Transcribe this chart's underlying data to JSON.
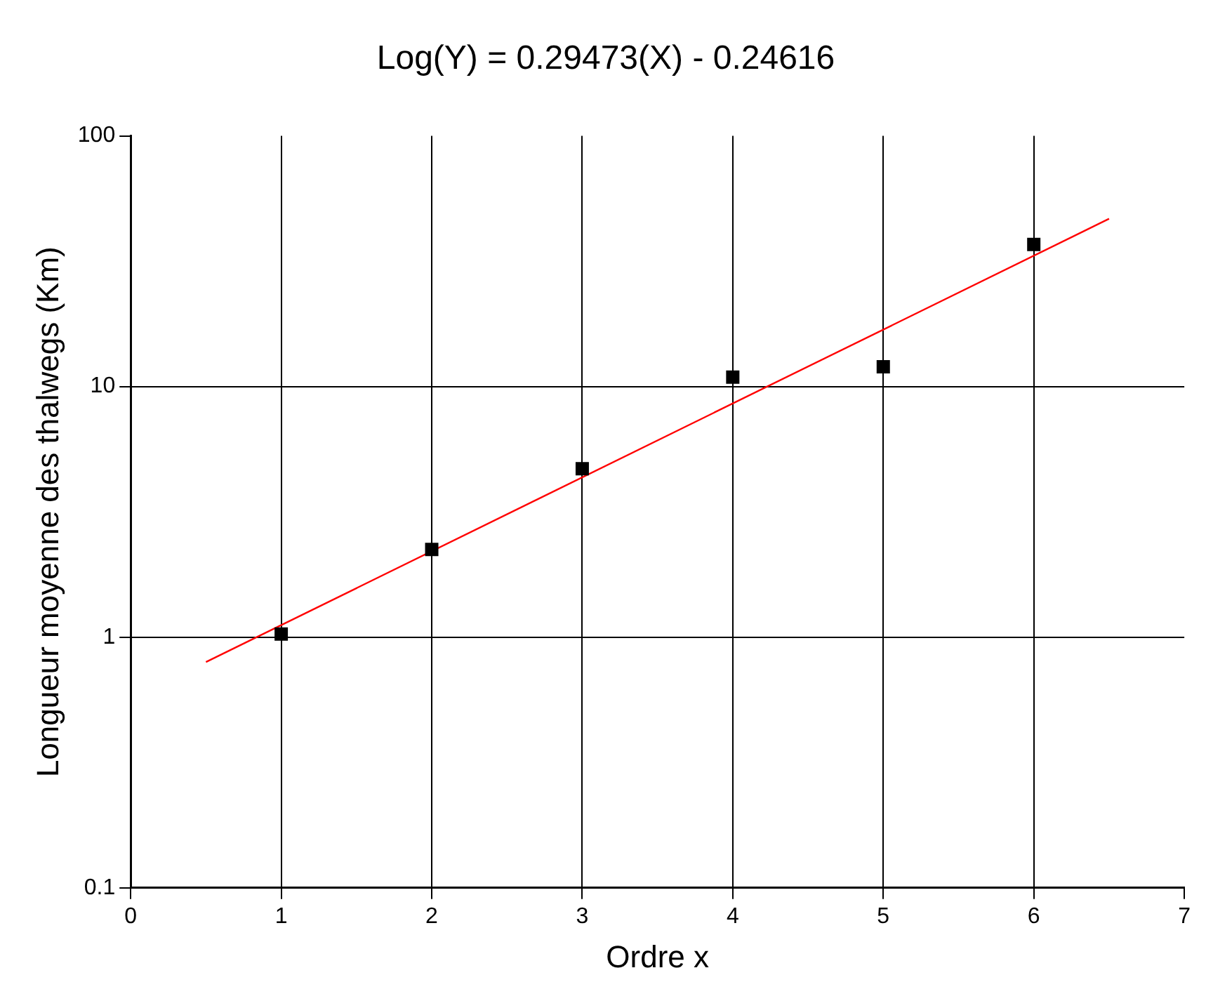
{
  "chart_data": {
    "type": "scatter",
    "title": "Log(Y) = 0.29473(X) - 0.24616",
    "xlabel": "Ordre x",
    "ylabel": "Longueur moyenne des thalwegs (Km)",
    "x": [
      1,
      2,
      3,
      4,
      5,
      6
    ],
    "series": [
      {
        "type": "scatter",
        "color": "#000000",
        "marker": "square",
        "values": [
          1.03,
          2.24,
          4.7,
          10.9,
          12,
          36.9
        ]
      },
      {
        "type": "line",
        "color": "#ff0000",
        "marker": "none",
        "line_style": "solid",
        "x": [
          0.5,
          6.5
        ],
        "values": [
          0.796,
          46.7
        ]
      }
    ],
    "log": "y",
    "xlim": [
      0,
      7
    ],
    "xticks": [
      0,
      1,
      2,
      3,
      4,
      5,
      6,
      7
    ],
    "ylim": [
      0.1,
      100
    ],
    "yticks": [
      0.1,
      1,
      10,
      100
    ],
    "grid": true,
    "legend": false
  }
}
